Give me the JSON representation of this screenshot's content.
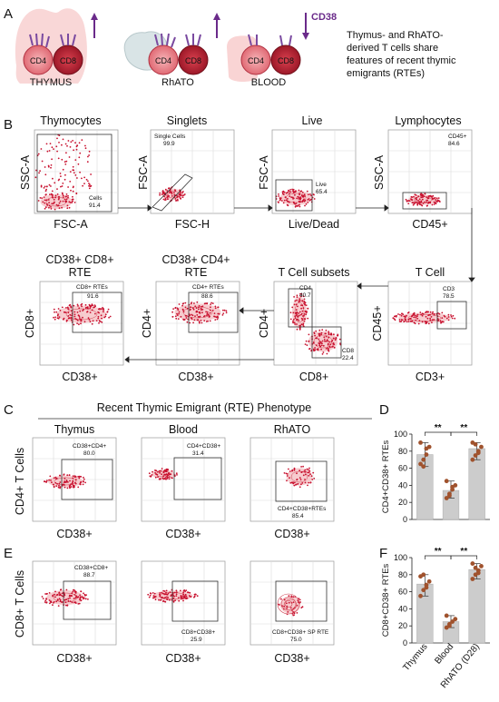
{
  "panel_labels": [
    "A",
    "B",
    "C",
    "D",
    "E",
    "F"
  ],
  "panel_a": {
    "groups": [
      {
        "name": "THYMUS",
        "cell1": "CD4",
        "cell2": "CD8"
      },
      {
        "name": "RhATO",
        "cell1": "CD4",
        "cell2": "CD8"
      },
      {
        "name": "BLOOD",
        "cell1": "CD4",
        "cell2": "CD8"
      }
    ],
    "cd38_label": "CD38",
    "caption_lines": [
      "Thymus- and RhATO-",
      "derived T cells share",
      "features of recent thymic",
      "emigrants (RTEs)"
    ]
  },
  "panel_b": {
    "plots": [
      {
        "title": "Thymocytes",
        "x_label": "FSC-A",
        "y_label": "SSC-A",
        "gate_name": "Cells",
        "gate_value": "91.4"
      },
      {
        "title": "Singlets",
        "x_label": "FSC-H",
        "y_label": "FSC-A",
        "gate_name": "Single Cells",
        "gate_value": "99.9"
      },
      {
        "title": "Live",
        "x_label": "Live/Dead",
        "y_label": "FSC-A",
        "gate_name": "Live",
        "gate_value": "65.4"
      },
      {
        "title": "Lymphocytes",
        "x_label": "CD45+",
        "y_label": "SSC-A",
        "gate_name": "CD45+",
        "gate_value": "84.6"
      },
      {
        "title_lines": [
          "CD38+ CD8+",
          "RTE"
        ],
        "x_label": "CD38+",
        "y_label": "CD8+",
        "gate_name": "CD8+ RTEs",
        "gate_value": "91.6"
      },
      {
        "title_lines": [
          "CD38+ CD4+",
          "RTE"
        ],
        "x_label": "CD38+",
        "y_label": "CD4+",
        "gate_name": "CD4+ RTEs",
        "gate_value": "88.6"
      },
      {
        "title": "T Cell subsets",
        "x_label": "CD8+",
        "y_label": "CD4+",
        "gates": [
          {
            "name": "CD4",
            "value": "40.7"
          },
          {
            "name": "CD8",
            "value": "22.4"
          }
        ]
      },
      {
        "title": "T Cell",
        "x_label": "CD3+",
        "y_label": "CD45+",
        "gate_name": "CD3",
        "value_gate": "78.5"
      }
    ]
  },
  "panel_c": {
    "header": "Recent Thymic Emigrant (RTE) Phenotype",
    "columns": [
      "Thymus",
      "Blood",
      "RhATO"
    ],
    "row_y_label": "CD4+ T Cells",
    "x_label": "CD38+",
    "gates": [
      {
        "name": "CD38+CD4+",
        "value": "80.0"
      },
      {
        "name": "CD4+CD38+",
        "value": "31.4"
      },
      {
        "name": "CD4+CD38+RTEs",
        "value": "85.4"
      }
    ]
  },
  "panel_e": {
    "row_y_label": "CD8+ T Cells",
    "x_label": "CD38+",
    "gates": [
      {
        "name": "CD38+CD8+",
        "value": "88.7"
      },
      {
        "name": "CD8+CD38+",
        "value": "25.9"
      },
      {
        "name": "CD8+CD38+ SP RTE",
        "value": "75.0"
      }
    ]
  },
  "chart_data": [
    {
      "type": "bar",
      "panel": "D",
      "categories": [
        "Thymus",
        "Blood",
        "RhATO (D28)"
      ],
      "values": [
        76,
        34,
        83
      ],
      "points": [
        [
          65,
          70,
          76,
          85,
          90,
          62,
          83
        ],
        [
          25,
          30,
          35,
          40,
          45,
          28,
          38
        ],
        [
          70,
          75,
          80,
          85,
          90,
          88,
          78
        ]
      ],
      "ylabel": "CD4+CD38+ RTEs",
      "ylim": [
        0,
        100
      ],
      "yticks": [
        0,
        20,
        40,
        60,
        80,
        100
      ],
      "significance": [
        {
          "from": 0,
          "to": 1,
          "label": "**"
        },
        {
          "from": 1,
          "to": 2,
          "label": "**"
        }
      ],
      "bar_color": "#cccccc",
      "point_color": "#a0522d"
    },
    {
      "type": "bar",
      "panel": "F",
      "categories": [
        "Thymus",
        "Blood",
        "RhATO (D28)"
      ],
      "values": [
        69,
        25,
        86
      ],
      "points": [
        [
          55,
          62,
          68,
          72,
          78,
          80,
          65
        ],
        [
          18,
          22,
          25,
          28,
          32,
          20
        ],
        [
          75,
          80,
          85,
          90,
          93,
          88,
          82
        ]
      ],
      "ylabel": "CD8+CD38+ RTEs",
      "ylim": [
        0,
        100
      ],
      "yticks": [
        0,
        20,
        40,
        60,
        80,
        100
      ],
      "significance": [
        {
          "from": 0,
          "to": 1,
          "label": "**"
        },
        {
          "from": 1,
          "to": 2,
          "label": "**"
        }
      ],
      "bar_color": "#cccccc",
      "point_color": "#a0522d"
    }
  ]
}
